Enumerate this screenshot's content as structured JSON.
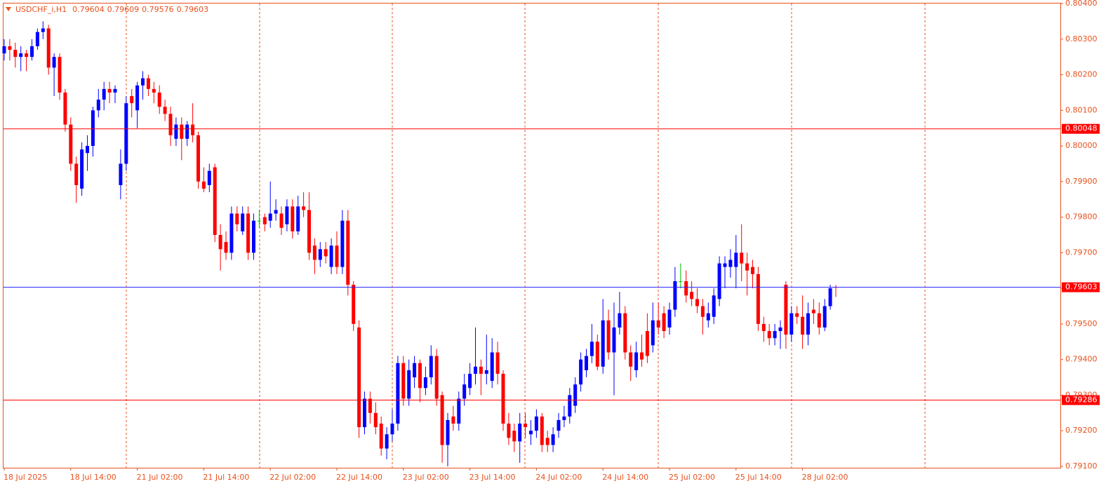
{
  "chart_data": {
    "type": "candlestick",
    "title": "USDCHF_i,H1",
    "colors": {
      "up": "#0000ff",
      "down": "#ff0000",
      "doji": "#00c000",
      "axis_text": "#e8501c",
      "bid_line": "#2222ff"
    },
    "categories": [
      "18 Jul 2025",
      null,
      null,
      null,
      null,
      null,
      null,
      null,
      null,
      null,
      null,
      null,
      "18 Jul 14:00",
      null,
      null,
      null,
      null,
      null,
      null,
      null,
      null,
      null,
      null,
      null,
      "21 Jul 02:00",
      null,
      null,
      null,
      null,
      null,
      null,
      null,
      null,
      null,
      null,
      null,
      "21 Jul 14:00",
      null,
      null,
      null,
      null,
      null,
      null,
      null,
      null,
      null,
      null,
      null,
      "22 Jul 02:00",
      null,
      null,
      null,
      null,
      null,
      null,
      null,
      null,
      null,
      null,
      null,
      "22 Jul 14:00",
      null,
      null,
      null,
      null,
      null,
      null,
      null,
      null,
      null,
      null,
      null,
      "23 Jul 02:00",
      null,
      null,
      null,
      null,
      null,
      null,
      null,
      null,
      null,
      null,
      null,
      "23 Jul 14:00",
      null,
      null,
      null,
      null,
      null,
      null,
      null,
      null,
      null,
      null,
      null,
      "24 Jul 02:00",
      null,
      null,
      null,
      null,
      null,
      null,
      null,
      null,
      null,
      null,
      null,
      "24 Jul 14:00",
      null,
      null,
      null,
      null,
      null,
      null,
      null,
      null,
      null,
      null,
      null,
      "25 Jul 02:00",
      null,
      null,
      null,
      null,
      null,
      null,
      null,
      null,
      null,
      null,
      null,
      "25 Jul 14:00",
      null,
      null,
      null,
      null,
      null,
      null,
      null,
      null,
      null,
      null,
      null,
      "28 Jul 02:00",
      null,
      null,
      null,
      null,
      null,
      null
    ],
    "candles": [
      [
        0.8026,
        0.803,
        0.8024,
        0.8028
      ],
      [
        0.8028,
        0.803,
        0.8024,
        0.8027
      ],
      [
        0.8027,
        0.8029,
        0.8022,
        0.8025
      ],
      [
        0.8025,
        0.8028,
        0.8021,
        0.8026
      ],
      [
        0.8026,
        0.8027,
        0.8021,
        0.8025
      ],
      [
        0.8025,
        0.803,
        0.8024,
        0.8028
      ],
      [
        0.8028,
        0.8033,
        0.8027,
        0.8032
      ],
      [
        0.8032,
        0.8035,
        0.803,
        0.8033
      ],
      [
        0.8033,
        0.8034,
        0.802,
        0.8022
      ],
      [
        0.8022,
        0.8026,
        0.8014,
        0.8025
      ],
      [
        0.8025,
        0.8026,
        0.8013,
        0.8015
      ],
      [
        0.8015,
        0.8016,
        0.8004,
        0.8006
      ],
      [
        0.8006,
        0.8008,
        0.7993,
        0.7995
      ],
      [
        0.7995,
        0.7997,
        0.7984,
        0.7989
      ],
      [
        0.7988,
        0.8001,
        0.7986,
        0.7999
      ],
      [
        0.7998,
        0.8003,
        0.7993,
        0.8
      ],
      [
        0.8,
        0.8011,
        0.7997,
        0.801
      ],
      [
        0.801,
        0.8016,
        0.8008,
        0.8013
      ],
      [
        0.8013,
        0.8018,
        0.801,
        0.8016
      ],
      [
        0.8016,
        0.8018,
        0.8012,
        0.8015
      ],
      [
        0.8015,
        0.8017,
        0.8012,
        0.8016
      ],
      [
        0.7989,
        0.7999,
        0.7985,
        0.7995
      ],
      [
        0.7995,
        0.8014,
        0.7993,
        0.8012
      ],
      [
        0.8014,
        0.8016,
        0.8008,
        0.8012
      ],
      [
        0.801,
        0.8018,
        0.8005,
        0.8017
      ],
      [
        0.8017,
        0.8021,
        0.8013,
        0.8019
      ],
      [
        0.8019,
        0.802,
        0.8014,
        0.8016
      ],
      [
        0.8016,
        0.8018,
        0.8012,
        0.8015
      ],
      [
        0.8015,
        0.8017,
        0.8009,
        0.8011
      ],
      [
        0.8011,
        0.8013,
        0.8007,
        0.8009
      ],
      [
        0.8009,
        0.8011,
        0.8,
        0.8003
      ],
      [
        0.8002,
        0.8008,
        0.8,
        0.8006
      ],
      [
        0.8006,
        0.8008,
        0.7996,
        0.8002
      ],
      [
        0.8002,
        0.8007,
        0.8,
        0.8006
      ],
      [
        0.8006,
        0.8012,
        0.8001,
        0.8003
      ],
      [
        0.8003,
        0.8004,
        0.7988,
        0.799
      ],
      [
        0.799,
        0.7994,
        0.7987,
        0.7988
      ],
      [
        0.7989,
        0.7995,
        0.7987,
        0.7993
      ],
      [
        0.7994,
        0.7995,
        0.7973,
        0.7975
      ],
      [
        0.7975,
        0.7978,
        0.7965,
        0.7971
      ],
      [
        0.7973,
        0.7976,
        0.7968,
        0.797
      ],
      [
        0.797,
        0.7983,
        0.7968,
        0.7981
      ],
      [
        0.7981,
        0.7983,
        0.7976,
        0.7978
      ],
      [
        0.7976,
        0.7983,
        0.7975,
        0.7981
      ],
      [
        0.7981,
        0.7983,
        0.7968,
        0.797
      ],
      [
        0.797,
        0.7981,
        0.7968,
        0.7979
      ],
      [
        0.7979,
        0.7982,
        0.7977,
        0.7979
      ],
      [
        0.798,
        0.7981,
        0.7976,
        0.7978
      ],
      [
        0.7979,
        0.799,
        0.7977,
        0.7981
      ],
      [
        0.7981,
        0.7985,
        0.7979,
        0.7982
      ],
      [
        0.7981,
        0.7983,
        0.7975,
        0.7977
      ],
      [
        0.7978,
        0.7985,
        0.7976,
        0.7983
      ],
      [
        0.7983,
        0.7985,
        0.7974,
        0.7976
      ],
      [
        0.7976,
        0.7986,
        0.7975,
        0.7983
      ],
      [
        0.7983,
        0.7987,
        0.798,
        0.7982
      ],
      [
        0.7982,
        0.7987,
        0.7968,
        0.797
      ],
      [
        0.7972,
        0.7974,
        0.7964,
        0.7968
      ],
      [
        0.7968,
        0.7973,
        0.7966,
        0.7971
      ],
      [
        0.7971,
        0.7973,
        0.7967,
        0.7969
      ],
      [
        0.7966,
        0.7974,
        0.7964,
        0.7972
      ],
      [
        0.7972,
        0.7976,
        0.7964,
        0.7966
      ],
      [
        0.7966,
        0.7982,
        0.7964,
        0.7979
      ],
      [
        0.7979,
        0.7982,
        0.7958,
        0.7961
      ],
      [
        0.7961,
        0.7962,
        0.7948,
        0.795
      ],
      [
        0.7949,
        0.7951,
        0.7918,
        0.7921
      ],
      [
        0.7921,
        0.7931,
        0.7919,
        0.7929
      ],
      [
        0.7929,
        0.7931,
        0.7922,
        0.7925
      ],
      [
        0.7925,
        0.7928,
        0.7919,
        0.7921
      ],
      [
        0.7922,
        0.7924,
        0.7913,
        0.7915
      ],
      [
        0.7915,
        0.7921,
        0.7912,
        0.7919
      ],
      [
        0.7919,
        0.7926,
        0.7917,
        0.7922
      ],
      [
        0.7922,
        0.7941,
        0.792,
        0.7939
      ],
      [
        0.7939,
        0.7941,
        0.7927,
        0.7929
      ],
      [
        0.7929,
        0.794,
        0.7927,
        0.7937
      ],
      [
        0.7935,
        0.7941,
        0.7932,
        0.7939
      ],
      [
        0.7939,
        0.794,
        0.7928,
        0.7932
      ],
      [
        0.7932,
        0.7938,
        0.793,
        0.7935
      ],
      [
        0.7935,
        0.7944,
        0.7933,
        0.7941
      ],
      [
        0.7941,
        0.7943,
        0.7927,
        0.7929
      ],
      [
        0.793,
        0.7931,
        0.7911,
        0.7916
      ],
      [
        0.7916,
        0.7925,
        0.791,
        0.7923
      ],
      [
        0.7924,
        0.7927,
        0.792,
        0.7922
      ],
      [
        0.7922,
        0.7931,
        0.792,
        0.7929
      ],
      [
        0.7929,
        0.7936,
        0.7927,
        0.7933
      ],
      [
        0.7932,
        0.7939,
        0.793,
        0.7936
      ],
      [
        0.7936,
        0.7949,
        0.7933,
        0.7938
      ],
      [
        0.7938,
        0.794,
        0.793,
        0.7936
      ],
      [
        0.7936,
        0.7947,
        0.7933,
        0.7937
      ],
      [
        0.7934,
        0.7946,
        0.7932,
        0.7942
      ],
      [
        0.7942,
        0.7945,
        0.7933,
        0.7936
      ],
      [
        0.7936,
        0.7937,
        0.792,
        0.7922
      ],
      [
        0.7922,
        0.7925,
        0.7916,
        0.7918
      ],
      [
        0.792,
        0.7922,
        0.7914,
        0.7917
      ],
      [
        0.7917,
        0.7925,
        0.7911,
        0.7922
      ],
      [
        0.7922,
        0.7925,
        0.7918,
        0.7921
      ],
      [
        0.7919,
        0.7923,
        0.7916,
        0.792
      ],
      [
        0.792,
        0.7926,
        0.7918,
        0.7924
      ],
      [
        0.7924,
        0.7925,
        0.7914,
        0.7916
      ],
      [
        0.7918,
        0.792,
        0.7914,
        0.7916
      ],
      [
        0.7916,
        0.7921,
        0.7914,
        0.7919
      ],
      [
        0.792,
        0.7925,
        0.7918,
        0.7923
      ],
      [
        0.7923,
        0.7927,
        0.7921,
        0.7924
      ],
      [
        0.7924,
        0.7932,
        0.7922,
        0.793
      ],
      [
        0.7927,
        0.7935,
        0.7925,
        0.7933
      ],
      [
        0.7933,
        0.7942,
        0.7931,
        0.794
      ],
      [
        0.7937,
        0.7943,
        0.7935,
        0.7941
      ],
      [
        0.7941,
        0.795,
        0.7939,
        0.7945
      ],
      [
        0.7945,
        0.7947,
        0.7937,
        0.7938
      ],
      [
        0.7938,
        0.7957,
        0.7936,
        0.7951
      ],
      [
        0.7951,
        0.7954,
        0.794,
        0.7942
      ],
      [
        0.7942,
        0.7956,
        0.793,
        0.7949
      ],
      [
        0.7949,
        0.7959,
        0.7947,
        0.7953
      ],
      [
        0.7953,
        0.7955,
        0.794,
        0.7942
      ],
      [
        0.7942,
        0.7944,
        0.7934,
        0.7938
      ],
      [
        0.7937,
        0.7945,
        0.7935,
        0.7942
      ],
      [
        0.7942,
        0.7947,
        0.7938,
        0.794
      ],
      [
        0.7948,
        0.7953,
        0.7939,
        0.7941
      ],
      [
        0.7944,
        0.7956,
        0.7942,
        0.7951
      ],
      [
        0.7951,
        0.7956,
        0.7947,
        0.7949
      ],
      [
        0.7953,
        0.7955,
        0.7946,
        0.7948
      ],
      [
        0.7949,
        0.7956,
        0.7947,
        0.7954
      ],
      [
        0.7954,
        0.7966,
        0.7952,
        0.7962
      ],
      [
        0.7962,
        0.7967,
        0.796,
        0.7962
      ],
      [
        0.7962,
        0.7965,
        0.7956,
        0.7958
      ],
      [
        0.7959,
        0.7962,
        0.7955,
        0.7957
      ],
      [
        0.7957,
        0.796,
        0.7953,
        0.7955
      ],
      [
        0.7955,
        0.7957,
        0.7947,
        0.7952
      ],
      [
        0.7951,
        0.7956,
        0.7949,
        0.7953
      ],
      [
        0.7952,
        0.796,
        0.795,
        0.7958
      ],
      [
        0.7957,
        0.7969,
        0.7955,
        0.7967
      ],
      [
        0.7966,
        0.7969,
        0.796,
        0.7967
      ],
      [
        0.7966,
        0.7971,
        0.7963,
        0.7968
      ],
      [
        0.7966,
        0.7975,
        0.796,
        0.797
      ],
      [
        0.797,
        0.7978,
        0.7962,
        0.7967
      ],
      [
        0.7967,
        0.797,
        0.7958,
        0.7965
      ],
      [
        0.7966,
        0.7968,
        0.796,
        0.7964
      ],
      [
        0.7964,
        0.7966,
        0.7948,
        0.795
      ],
      [
        0.795,
        0.7952,
        0.7945,
        0.7948
      ],
      [
        0.7948,
        0.795,
        0.7944,
        0.7946
      ],
      [
        0.7946,
        0.795,
        0.7944,
        0.7948
      ],
      [
        0.7948,
        0.7951,
        0.7943,
        0.7949
      ],
      [
        0.7961,
        0.7962,
        0.7943,
        0.7947
      ],
      [
        0.7947,
        0.7955,
        0.7945,
        0.7953
      ],
      [
        0.7953,
        0.7955,
        0.795,
        0.7952
      ],
      [
        0.7952,
        0.7958,
        0.7943,
        0.7947
      ],
      [
        0.7947,
        0.7956,
        0.7944,
        0.7953
      ],
      [
        0.7954,
        0.7957,
        0.795,
        0.7953
      ],
      [
        0.7953,
        0.7956,
        0.7947,
        0.7949
      ],
      [
        0.7949,
        0.7957,
        0.7948,
        0.7955
      ],
      [
        0.7955,
        0.7961,
        0.7954,
        0.796
      ],
      [
        0.79604,
        0.79609,
        0.79576,
        0.79603
      ]
    ],
    "hlines": [
      {
        "value": 0.80048,
        "color": "#ff0000"
      },
      {
        "value": 0.79286,
        "color": "#ff0000"
      }
    ],
    "ylim": [
      0.79096,
      0.80402
    ],
    "yticks": [
      {
        "value": 0.804,
        "label": "0.80400"
      },
      {
        "value": 0.803,
        "label": "0.80300"
      },
      {
        "value": 0.802,
        "label": "0.80200"
      },
      {
        "value": 0.801,
        "label": "0.80100"
      },
      {
        "value": 0.8,
        "label": "0.80000"
      },
      {
        "value": 0.799,
        "label": "0.79900"
      },
      {
        "value": 0.798,
        "label": "0.79800"
      },
      {
        "value": 0.797,
        "label": "0.79700"
      },
      {
        "value": 0.796,
        "label": "0.79600"
      },
      {
        "value": 0.795,
        "label": "0.79500"
      },
      {
        "value": 0.794,
        "label": "0.79400"
      },
      {
        "value": 0.793,
        "label": "0.79300"
      },
      {
        "value": 0.792,
        "label": "0.79200"
      },
      {
        "value": 0.791,
        "label": "0.79100"
      }
    ]
  }
}
